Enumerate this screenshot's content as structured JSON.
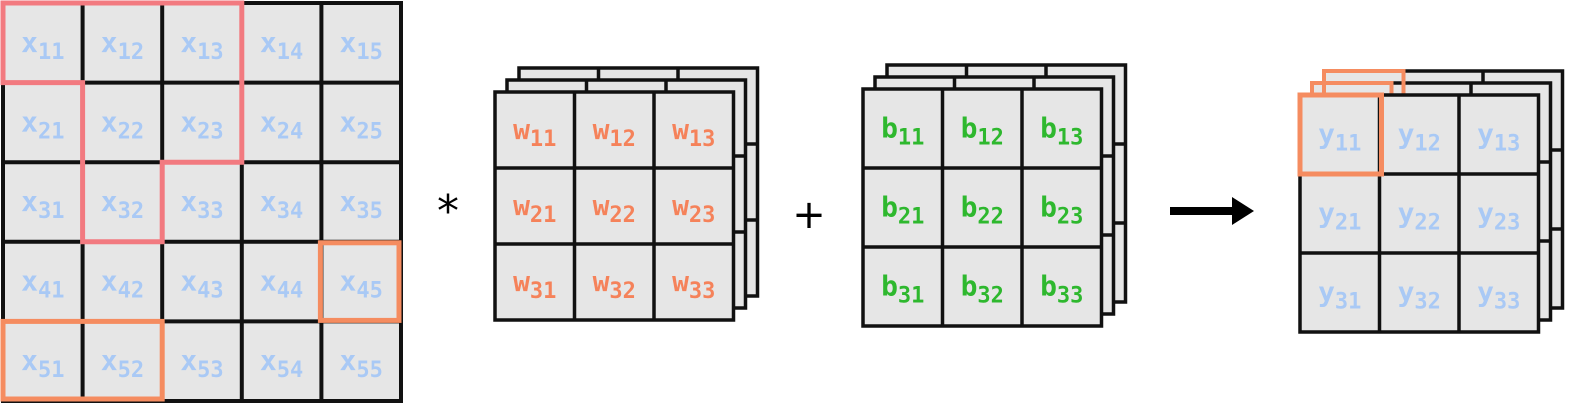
{
  "colors": {
    "cell_fill": "#e6e6e6",
    "grid_stroke": "#111111",
    "x_text": "#a9c9f5",
    "w_text": "#f5825a",
    "b_text": "#2eb82e",
    "y_text": "#a9c9f5",
    "highlight_pink": "#f27a80",
    "highlight_orange": "#f58c60"
  },
  "input_matrix": {
    "base": "x",
    "cells": [
      [
        "11",
        "12",
        "13",
        "14",
        "15"
      ],
      [
        "21",
        "22",
        "23",
        "24",
        "25"
      ],
      [
        "31",
        "32",
        "33",
        "34",
        "35"
      ],
      [
        "41",
        "42",
        "43",
        "44",
        "45"
      ],
      [
        "51",
        "52",
        "53",
        "54",
        "55"
      ]
    ]
  },
  "convolution_operator": "*",
  "weight_kernel": {
    "base": "w",
    "cells": [
      [
        "11",
        "12",
        "13"
      ],
      [
        "21",
        "22",
        "23"
      ],
      [
        "31",
        "32",
        "33"
      ]
    ]
  },
  "addition_operator": "+",
  "bias_kernel": {
    "base": "b",
    "cells": [
      [
        "11",
        "12",
        "13"
      ],
      [
        "21",
        "22",
        "23"
      ],
      [
        "31",
        "32",
        "33"
      ]
    ]
  },
  "output_matrix": {
    "base": "y",
    "cells": [
      [
        "11",
        "12",
        "13"
      ],
      [
        "21",
        "22",
        "23"
      ],
      [
        "31",
        "32",
        "33"
      ]
    ]
  }
}
